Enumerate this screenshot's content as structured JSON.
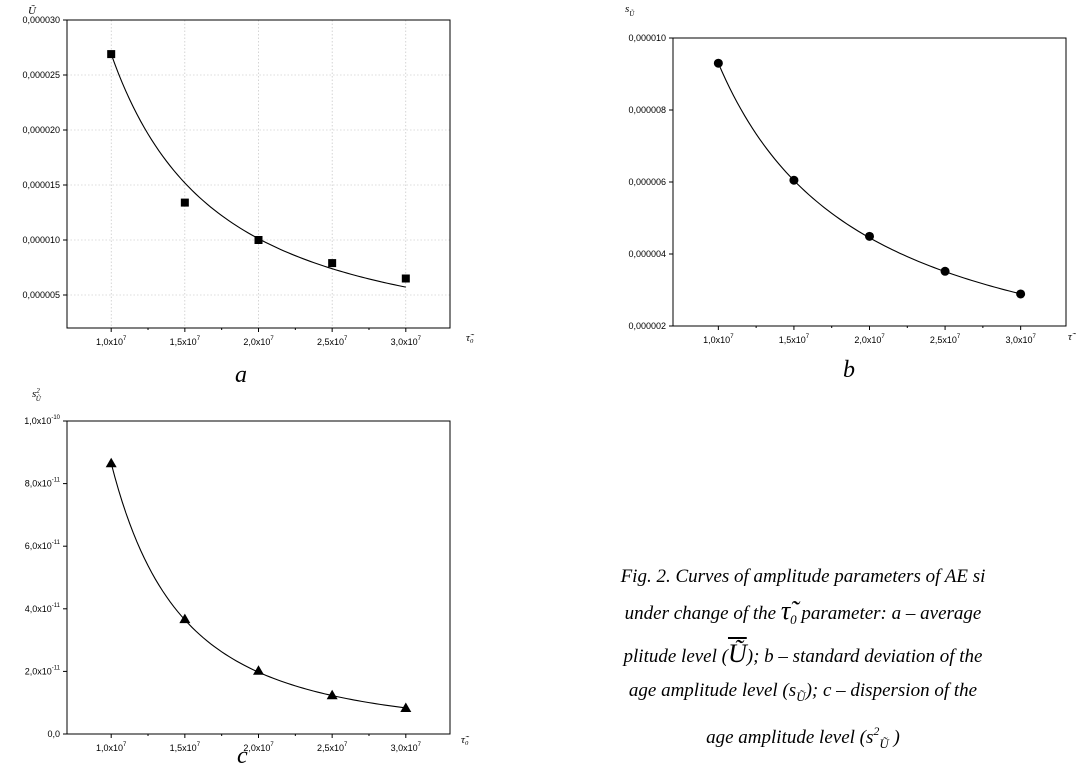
{
  "figure": {
    "caption_lines": [
      "Fig. 2. Curves of amplitude parameters of AE si",
      "under change of the",
      "parameter: a – average",
      "plitude level (",
      "); b – standard deviation of the",
      "age amplitude level (",
      "); c – dispersion of the",
      "age amplitude level ("
    ],
    "caption_symbols": {
      "tau": "τ̃",
      "tau_sub": "0",
      "u": "Ũ",
      "s": "s",
      "s_sub": "Ũ",
      "sq": "2",
      "close": ")"
    }
  },
  "chart_data": [
    {
      "id": "a",
      "type": "scatter",
      "panel_label": "a",
      "ylabel": "Ũ",
      "xlabel": "τ̃₀",
      "marker": "square",
      "grid": true,
      "fit_line": true,
      "x": [
        10000000,
        15000000,
        20000000,
        25000000,
        30000000
      ],
      "y": [
        2.69e-05,
        1.34e-05,
        1e-05,
        7.9e-06,
        6.5e-06
      ],
      "fit_curve": {
        "type": "power",
        "coef": 2.69e-05,
        "exp": -1.41
      },
      "xlim": [
        7000000,
        33000000
      ],
      "ylim": [
        2e-06,
        3e-05
      ],
      "xticks": [
        10000000,
        15000000,
        20000000,
        25000000,
        30000000
      ],
      "xtick_labels": [
        [
          "1,0x10",
          "7"
        ],
        [
          "1,5x10",
          "7"
        ],
        [
          "2,0x10",
          "7"
        ],
        [
          "2,5x10",
          "7"
        ],
        [
          "3,0x10",
          "7"
        ]
      ],
      "yticks": [
        5e-06,
        1e-05,
        1.5e-05,
        2e-05,
        2.5e-05,
        3e-05
      ],
      "ytick_labels": [
        [
          "0,000005",
          ""
        ],
        [
          "0,000010",
          ""
        ],
        [
          "0,000015",
          ""
        ],
        [
          "0,000020",
          ""
        ],
        [
          "0,000025",
          ""
        ],
        [
          "0,000030",
          ""
        ]
      ]
    },
    {
      "id": "b",
      "type": "scatter",
      "panel_label": "b",
      "ylabel": "s",
      "ylabel_sub": "Ũ",
      "xlabel": "τ̃",
      "marker": "circle",
      "grid": false,
      "fit_line": true,
      "x": [
        10000000,
        15000000,
        20000000,
        25000000,
        30000000
      ],
      "y": [
        9.3e-06,
        6.05e-06,
        4.49e-06,
        3.52e-06,
        2.89e-06
      ],
      "fit_curve": {
        "type": "power",
        "coef": 9.3e-06,
        "exp": -1.063
      },
      "xlim": [
        7000000,
        33000000
      ],
      "ylim": [
        2e-06,
        1e-05
      ],
      "xticks": [
        10000000,
        15000000,
        20000000,
        25000000,
        30000000
      ],
      "xtick_labels": [
        [
          "1,0x10",
          "7"
        ],
        [
          "1,5x10",
          "7"
        ],
        [
          "2,0x10",
          "7"
        ],
        [
          "2,5x10",
          "7"
        ],
        [
          "3,0x10",
          "7"
        ]
      ],
      "yticks": [
        2e-06,
        4e-06,
        6e-06,
        8e-06,
        1e-05
      ],
      "ytick_labels": [
        [
          "0,000002",
          ""
        ],
        [
          "0,000004",
          ""
        ],
        [
          "0,000006",
          ""
        ],
        [
          "0,000008",
          ""
        ],
        [
          "0,000010",
          ""
        ]
      ]
    },
    {
      "id": "c",
      "type": "scatter",
      "panel_label": "c",
      "ylabel": "s",
      "ylabel_sub": "Ũ",
      "ylabel_sup": "2",
      "xlabel": "τ̃₀",
      "marker": "triangle",
      "grid": false,
      "fit_line": true,
      "x": [
        10000000,
        15000000,
        20000000,
        25000000,
        30000000
      ],
      "y": [
        8.65e-11,
        3.67e-11,
        2.02e-11,
        1.24e-11,
        8.3e-12
      ],
      "fit_curve": {
        "type": "power",
        "coef": 8.65e-11,
        "exp": -2.13
      },
      "xlim": [
        7000000,
        33000000
      ],
      "ylim": [
        0,
        1e-10
      ],
      "xticks": [
        10000000,
        15000000,
        20000000,
        25000000,
        30000000
      ],
      "xtick_labels": [
        [
          "1,0x10",
          "7"
        ],
        [
          "1,5x10",
          "7"
        ],
        [
          "2,0x10",
          "7"
        ],
        [
          "2,5x10",
          "7"
        ],
        [
          "3,0x10",
          "7"
        ]
      ],
      "yticks": [
        0,
        2e-11,
        4e-11,
        6e-11,
        8e-11,
        1e-10
      ],
      "ytick_labels": [
        [
          "0,0",
          ""
        ],
        [
          "2,0x10",
          "-11"
        ],
        [
          "4,0x10",
          "-11"
        ],
        [
          "6,0x10",
          "-11"
        ],
        [
          "8,0x10",
          "-11"
        ],
        [
          "1,0x10",
          "-10"
        ]
      ]
    }
  ]
}
